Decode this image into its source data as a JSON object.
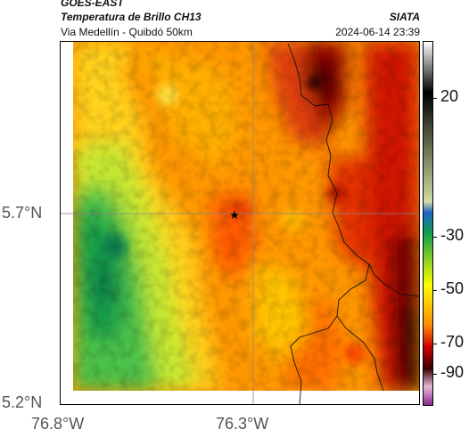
{
  "header": {
    "satellite": "GOES-EAST",
    "product": "Temperatura de Brillo CH13",
    "region": "Via Medellín - Quibdó 50km",
    "credit": "SIATA",
    "datetime": "2024-06-14 23:39"
  },
  "map": {
    "latitude_labels": [
      "5.7°N",
      "5.2°N"
    ],
    "longitude_labels": [
      "76.8°W",
      "76.3°W"
    ],
    "marker": "star-icon"
  },
  "colorbar": {
    "ticks": [
      "20",
      "-30",
      "-50",
      "-70",
      "-90"
    ],
    "palette": [
      "#ffffff",
      "#000000",
      "#d0dca0",
      "#1e64c8",
      "#14a04a",
      "#ffff00",
      "#ff8c00",
      "#cc0000",
      "#3c0000",
      "#e8b8d8",
      "#8c2890"
    ]
  }
}
